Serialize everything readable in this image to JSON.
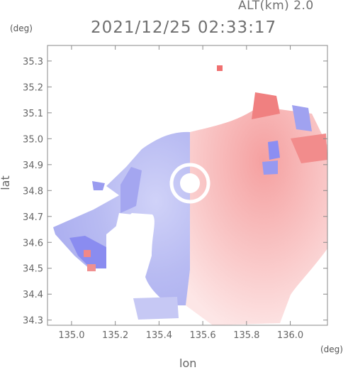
{
  "header": {
    "altitude_label": "ALT(km)  2.0",
    "timestamp": "2021/12/25 02:33:17"
  },
  "axes": {
    "y_unit": "(deg)",
    "x_unit": "(deg)",
    "xlabel": "lon",
    "ylabel": "lat"
  },
  "chart_data": {
    "type": "heatmap",
    "x_ticks": [
      "135.0",
      "135.2",
      "135.4",
      "135.6",
      "135.8",
      "136.0"
    ],
    "x_tick_values": [
      135.0,
      135.2,
      135.4,
      135.6,
      135.8,
      136.0
    ],
    "y_ticks": [
      "34.3",
      "34.4",
      "34.5",
      "34.6",
      "34.7",
      "34.8",
      "34.9",
      "35.0",
      "35.1",
      "35.2",
      "35.3"
    ],
    "y_tick_values": [
      34.3,
      34.4,
      34.5,
      34.6,
      34.7,
      34.8,
      34.9,
      35.0,
      35.1,
      35.2,
      35.3
    ],
    "xlim": [
      134.89,
      136.17
    ],
    "ylim": [
      34.28,
      35.36
    ],
    "radar_center": {
      "lon": 135.56,
      "lat": 34.81
    },
    "colors": {
      "approaching": "#7c7cf0",
      "receding": "#f07070",
      "background": "#ffffff",
      "axis": "#8a8a8a"
    }
  }
}
